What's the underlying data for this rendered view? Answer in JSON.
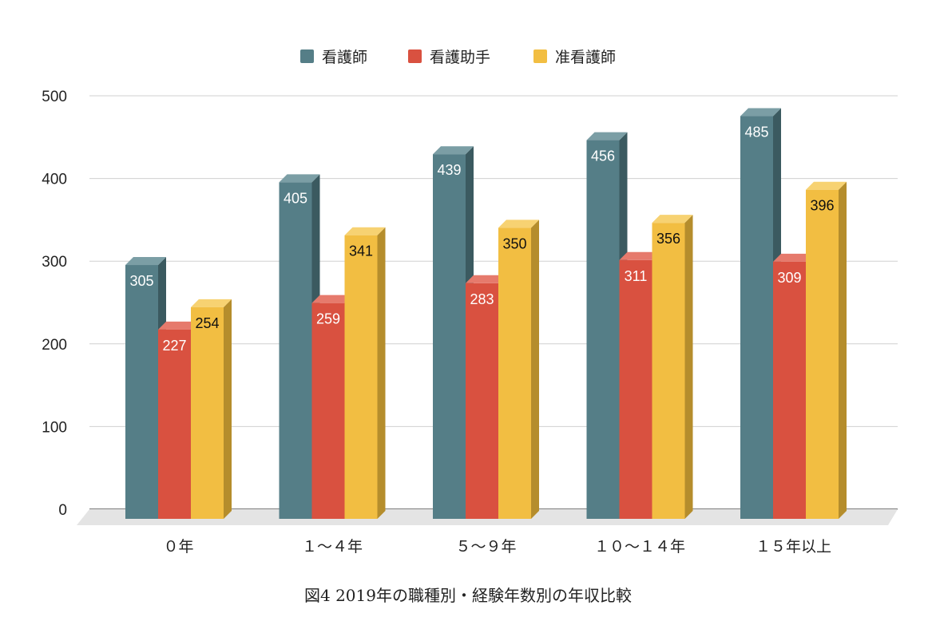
{
  "caption": "図4 2019年の職種別・経験年数別の年収比較",
  "chart_data": {
    "type": "bar",
    "style": "3d-column",
    "categories": [
      "０年",
      "１～４年",
      "５～９年",
      "１０～１４年",
      "１５年以上"
    ],
    "series": [
      {
        "name": "看護師",
        "values": [
          305,
          405,
          439,
          456,
          485
        ],
        "color": "#557e87",
        "side_color": "#3b5a60",
        "top_color": "#7b9ea5",
        "label_color": "#ffffff"
      },
      {
        "name": "看護助手",
        "values": [
          227,
          259,
          283,
          311,
          309
        ],
        "color": "#d95140",
        "side_color": "#a83a2d",
        "top_color": "#e67a6c",
        "label_color": "#ffffff"
      },
      {
        "name": "准看護師",
        "values": [
          254,
          341,
          350,
          356,
          396
        ],
        "color": "#f2be42",
        "side_color": "#b58d2c",
        "top_color": "#f7d272",
        "label_color": "#111111"
      }
    ],
    "yticks": [
      "0",
      "100",
      "200",
      "300",
      "400",
      "500"
    ],
    "ylim": [
      0,
      500
    ],
    "grid": true,
    "legend_position": "top-center"
  }
}
